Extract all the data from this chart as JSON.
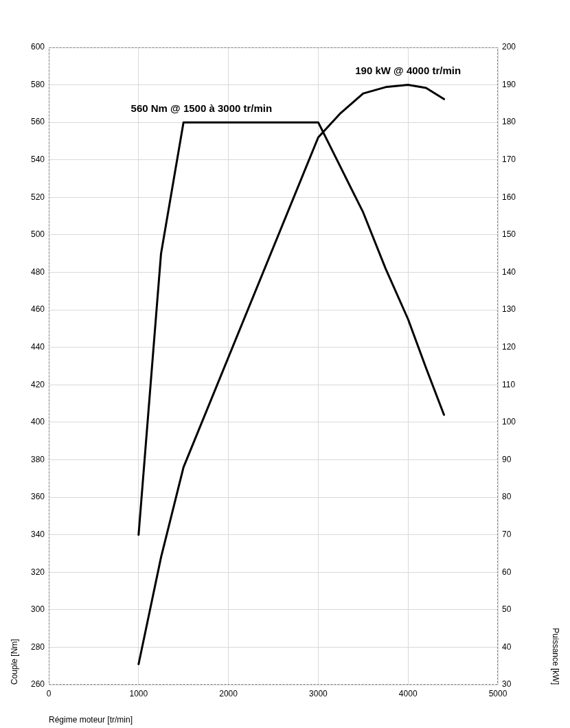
{
  "chart_data": {
    "type": "line",
    "xlabel": "Régime moteur [tr/min]",
    "ylabel": "Couple [Nm]",
    "y2label": "Puissance [kW]",
    "xlim": [
      0,
      5000
    ],
    "xticks": [
      0,
      1000,
      2000,
      3000,
      4000,
      5000
    ],
    "ylim": [
      260,
      600
    ],
    "yticks": [
      260,
      280,
      300,
      320,
      340,
      360,
      380,
      400,
      420,
      440,
      460,
      480,
      500,
      520,
      540,
      560,
      580,
      600
    ],
    "y2lim": [
      30,
      200
    ],
    "y2ticks": [
      30,
      40,
      50,
      60,
      70,
      80,
      90,
      100,
      110,
      120,
      130,
      140,
      150,
      160,
      170,
      180,
      190,
      200
    ],
    "series": [
      {
        "color": "#000000",
        "x": [
          1000,
          1250,
          1500,
          3000,
          3500,
          3750,
          4000,
          4200,
          4400
        ],
        "values": [
          340,
          490,
          560,
          560,
          512,
          482,
          455,
          429,
          404
        ]
      },
      {
        "color": "#000000",
        "axis": "y2",
        "x": [
          1000,
          1250,
          1500,
          3000,
          3250,
          3500,
          3750,
          4000,
          4200,
          4400
        ],
        "values": [
          35.5,
          64,
          88,
          176,
          182.5,
          187.7,
          189.4,
          190,
          189.2,
          186.2
        ]
      }
    ],
    "annotations": [
      {
        "text": "560 Nm @ 1500 à 3000 tr/min",
        "x": 1700,
        "y": 560
      },
      {
        "text": "190 kW @ 4000 tr/min",
        "x": 4000,
        "y": 580
      }
    ],
    "grid": true,
    "legend": false,
    "marker": "none",
    "line_style": "solid"
  }
}
